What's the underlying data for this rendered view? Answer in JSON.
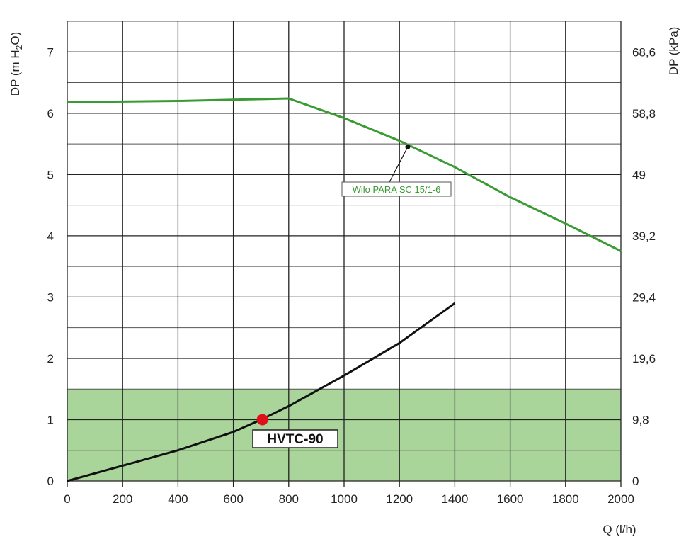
{
  "chart_data": {
    "type": "line",
    "xlabel": "Q (l/h)",
    "ylabel_left": "DP (m H2O)",
    "ylabel_right": "DP (kPa)",
    "xlim": [
      0,
      2000
    ],
    "ylim": [
      0,
      7.5
    ],
    "x_ticks": [
      0,
      200,
      400,
      600,
      800,
      1000,
      1200,
      1400,
      1600,
      1800,
      2000
    ],
    "y_ticks_left": [
      0,
      1,
      2,
      3,
      4,
      5,
      6,
      7
    ],
    "y_ticks_right": [
      {
        "value": 0,
        "label": "0"
      },
      {
        "value": 1,
        "label": "9,8"
      },
      {
        "value": 2,
        "label": "19,6"
      },
      {
        "value": 3,
        "label": "29,4"
      },
      {
        "value": 4,
        "label": "39,2"
      },
      {
        "value": 5,
        "label": "49"
      },
      {
        "value": 6,
        "label": "58,8"
      },
      {
        "value": 7,
        "label": "68,6"
      }
    ],
    "grid": true,
    "shaded_region": {
      "y_from": 0,
      "y_to": 1.5,
      "color": "#a9d49a"
    },
    "series": [
      {
        "name": "Wilo PARA SC 15/1-6",
        "color": "#3a9b35",
        "points": [
          [
            0,
            6.18
          ],
          [
            200,
            6.19
          ],
          [
            400,
            6.2
          ],
          [
            600,
            6.22
          ],
          [
            800,
            6.24
          ],
          [
            1000,
            5.92
          ],
          [
            1200,
            5.55
          ],
          [
            1400,
            5.12
          ],
          [
            1600,
            4.63
          ],
          [
            1800,
            4.2
          ],
          [
            2000,
            3.75
          ]
        ]
      },
      {
        "name": "HVTC-90",
        "color": "#111111",
        "points": [
          [
            0,
            0
          ],
          [
            200,
            0.25
          ],
          [
            400,
            0.5
          ],
          [
            600,
            0.8
          ],
          [
            700,
            1.0
          ],
          [
            800,
            1.22
          ],
          [
            1000,
            1.72
          ],
          [
            1200,
            2.25
          ],
          [
            1400,
            2.9
          ]
        ]
      }
    ],
    "annotations": [
      {
        "text": "Wilo PARA SC 15/1-6",
        "series": 0,
        "anchor": [
          1230,
          5.45
        ],
        "color": "#3a9b35"
      },
      {
        "text": "HVTC-90",
        "series": 1,
        "anchor": [
          705,
          1.0
        ],
        "marker_color": "#e0101a"
      }
    ]
  }
}
